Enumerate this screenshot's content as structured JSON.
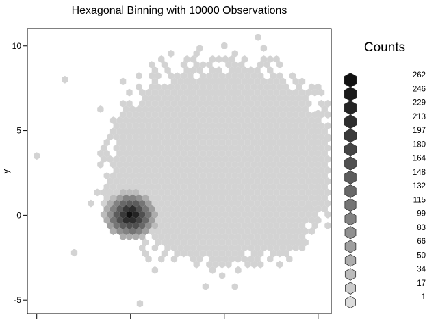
{
  "chart_data": {
    "type": "hexbin",
    "title": "Hexagonal Binning with 10000 Observations",
    "xlabel": "",
    "ylabel": "y",
    "n_observations": 10000,
    "xlim": [
      -5.5,
      10.7
    ],
    "ylim": [
      -5.8,
      11.0
    ],
    "y_ticks": [
      -5,
      0,
      5,
      10
    ],
    "x_ticks": [
      -5,
      0,
      5,
      10
    ],
    "x_tick_labels_visible": false,
    "grid": false,
    "legend": {
      "title": "Counts",
      "position": "right",
      "breaks": [
        262,
        246,
        229,
        213,
        197,
        180,
        164,
        148,
        132,
        115,
        99,
        83,
        66,
        50,
        34,
        17,
        1
      ],
      "colors": [
        "#111111",
        "#1a1a1a",
        "#242424",
        "#2e2e2e",
        "#393939",
        "#444444",
        "#505050",
        "#5c5c5c",
        "#686868",
        "#757575",
        "#828282",
        "#909090",
        "#9e9e9e",
        "#adadad",
        "#bcbcbc",
        "#cccccc",
        "#dcdcdc"
      ]
    },
    "clusters": [
      {
        "name": "background",
        "center": [
          5.0,
          3.0
        ],
        "spread": 3.0,
        "count_level": 17
      },
      {
        "name": "dense",
        "center": [
          0.0,
          0.0
        ],
        "spread": 0.8,
        "peak_count": 262
      }
    ],
    "isolated_points": [
      [
        -5.0,
        3.5
      ],
      [
        6.8,
        10.5
      ],
      [
        5.0,
        10.0
      ],
      [
        -3.5,
        8.0
      ],
      [
        10.5,
        4.5
      ],
      [
        4.0,
        -4.2
      ],
      [
        0.5,
        -5.2
      ],
      [
        10.0,
        6.0
      ],
      [
        9.5,
        0.5
      ],
      [
        -3.0,
        -2.2
      ]
    ],
    "colors": {
      "background_fill": "#d3d3d3",
      "dark_fill": "#111111",
      "axis": "#000000"
    }
  }
}
